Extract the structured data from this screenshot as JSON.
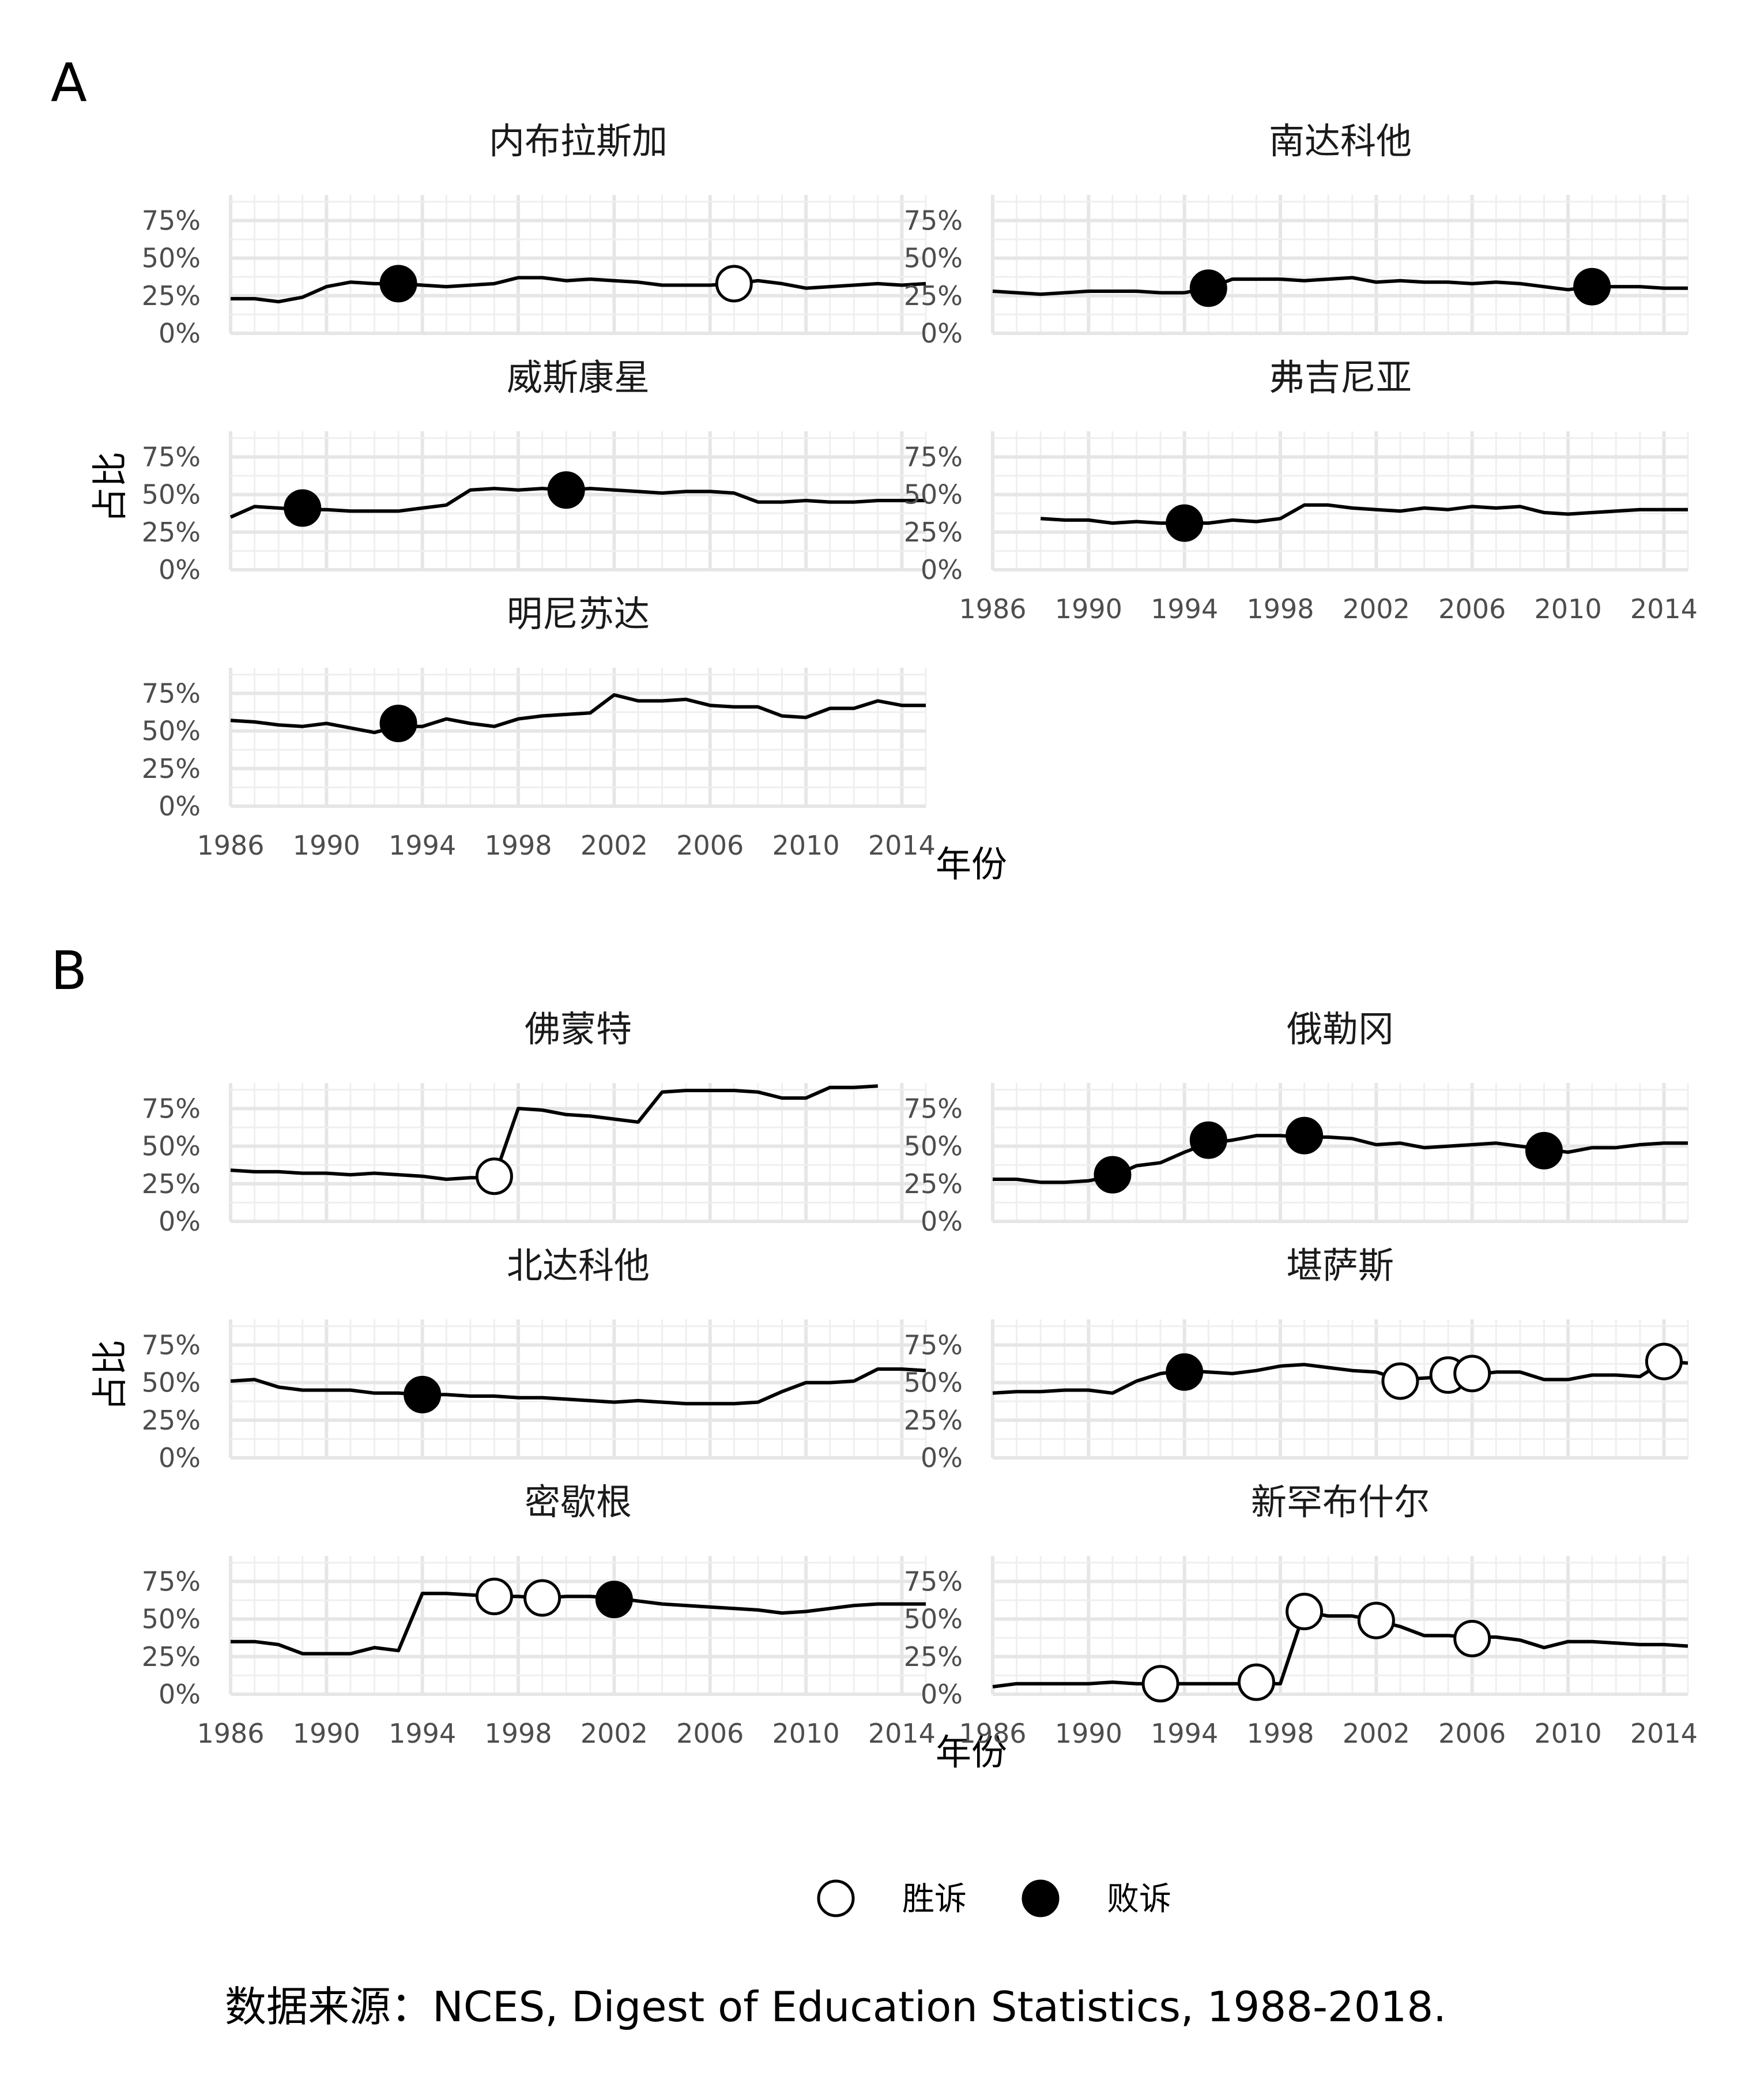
{
  "chart_data": {
    "type": "line",
    "panels": [
      {
        "label": "A",
        "xlabel": "年份",
        "ylabel": "占比",
        "facets": [
          {
            "title": "内布拉斯加",
            "x": [
              1986,
              1987,
              1988,
              1989,
              1990,
              1991,
              1992,
              1993,
              1994,
              1995,
              1996,
              1997,
              1998,
              1999,
              2000,
              2001,
              2002,
              2003,
              2004,
              2005,
              2006,
              2007,
              2008,
              2009,
              2010,
              2011,
              2012,
              2013,
              2014,
              2015
            ],
            "y": [
              0.23,
              0.23,
              0.21,
              0.24,
              0.31,
              0.34,
              0.33,
              0.33,
              0.32,
              0.31,
              0.32,
              0.33,
              0.37,
              0.37,
              0.35,
              0.36,
              0.35,
              0.34,
              0.32,
              0.32,
              0.32,
              0.33,
              0.35,
              0.33,
              0.3,
              0.31,
              0.32,
              0.33,
              0.32,
              0.33
            ],
            "events": [
              {
                "x": 1993,
                "y": 0.33,
                "outcome": "lost"
              },
              {
                "x": 2007,
                "y": 0.33,
                "outcome": "won"
              }
            ]
          },
          {
            "title": "南达科他",
            "x": [
              1986,
              1987,
              1988,
              1989,
              1990,
              1991,
              1992,
              1993,
              1994,
              1995,
              1996,
              1997,
              1998,
              1999,
              2000,
              2001,
              2002,
              2003,
              2004,
              2005,
              2006,
              2007,
              2008,
              2009,
              2010,
              2011,
              2012,
              2013,
              2014,
              2015
            ],
            "y": [
              0.28,
              0.27,
              0.26,
              0.27,
              0.28,
              0.28,
              0.28,
              0.27,
              0.27,
              0.3,
              0.36,
              0.36,
              0.36,
              0.35,
              0.36,
              0.37,
              0.34,
              0.35,
              0.34,
              0.34,
              0.33,
              0.34,
              0.33,
              0.31,
              0.29,
              0.31,
              0.31,
              0.31,
              0.3,
              0.3
            ],
            "events": [
              {
                "x": 1995,
                "y": 0.3,
                "outcome": "lost"
              },
              {
                "x": 2011,
                "y": 0.31,
                "outcome": "lost"
              }
            ]
          },
          {
            "title": "威斯康星",
            "x": [
              1986,
              1987,
              1988,
              1989,
              1990,
              1991,
              1992,
              1993,
              1994,
              1995,
              1996,
              1997,
              1998,
              1999,
              2000,
              2001,
              2002,
              2003,
              2004,
              2005,
              2006,
              2007,
              2008,
              2009,
              2010,
              2011,
              2012,
              2013,
              2014,
              2015
            ],
            "y": [
              0.35,
              0.42,
              0.41,
              0.4,
              0.4,
              0.39,
              0.39,
              0.39,
              0.41,
              0.43,
              0.53,
              0.54,
              0.53,
              0.54,
              0.53,
              0.54,
              0.53,
              0.52,
              0.51,
              0.52,
              0.52,
              0.51,
              0.45,
              0.45,
              0.46,
              0.45,
              0.45,
              0.46,
              0.46,
              0.46
            ],
            "events": [
              {
                "x": 1989,
                "y": 0.41,
                "outcome": "lost"
              },
              {
                "x": 2000,
                "y": 0.53,
                "outcome": "lost"
              }
            ]
          },
          {
            "title": "弗吉尼亚",
            "x": [
              1988,
              1989,
              1990,
              1991,
              1992,
              1993,
              1994,
              1995,
              1996,
              1997,
              1998,
              1999,
              2000,
              2001,
              2002,
              2003,
              2004,
              2005,
              2006,
              2007,
              2008,
              2009,
              2010,
              2011,
              2012,
              2013,
              2014,
              2015
            ],
            "y": [
              0.34,
              0.33,
              0.33,
              0.31,
              0.32,
              0.31,
              0.31,
              0.31,
              0.33,
              0.32,
              0.34,
              0.43,
              0.43,
              0.41,
              0.4,
              0.39,
              0.41,
              0.4,
              0.42,
              0.41,
              0.42,
              0.38,
              0.37,
              0.38,
              0.39,
              0.4,
              0.4,
              0.4
            ],
            "events": [
              {
                "x": 1994,
                "y": 0.31,
                "outcome": "lost"
              }
            ]
          },
          {
            "title": "明尼苏达",
            "x": [
              1986,
              1987,
              1988,
              1989,
              1990,
              1991,
              1992,
              1993,
              1994,
              1995,
              1996,
              1997,
              1998,
              1999,
              2000,
              2001,
              2002,
              2003,
              2004,
              2005,
              2006,
              2007,
              2008,
              2009,
              2010,
              2011,
              2012,
              2013,
              2014,
              2015
            ],
            "y": [
              0.57,
              0.56,
              0.54,
              0.53,
              0.55,
              0.52,
              0.49,
              0.53,
              0.53,
              0.58,
              0.55,
              0.53,
              0.58,
              0.6,
              0.61,
              0.62,
              0.74,
              0.7,
              0.7,
              0.71,
              0.67,
              0.66,
              0.66,
              0.6,
              0.59,
              0.65,
              0.65,
              0.7,
              0.67,
              0.67
            ],
            "events": [
              {
                "x": 1993,
                "y": 0.55,
                "outcome": "lost"
              }
            ]
          }
        ]
      },
      {
        "label": "B",
        "xlabel": "年份",
        "ylabel": "占比",
        "facets": [
          {
            "title": "佛蒙特",
            "x": [
              1986,
              1987,
              1988,
              1989,
              1990,
              1991,
              1992,
              1993,
              1994,
              1995,
              1996,
              1997,
              1998,
              1999,
              2000,
              2001,
              2002,
              2003,
              2004,
              2005,
              2006,
              2007,
              2008,
              2009,
              2010,
              2011,
              2012,
              2013
            ],
            "y": [
              0.34,
              0.33,
              0.33,
              0.32,
              0.32,
              0.31,
              0.32,
              0.31,
              0.3,
              0.28,
              0.29,
              0.29,
              0.75,
              0.74,
              0.71,
              0.7,
              0.68,
              0.66,
              0.86,
              0.87,
              0.87,
              0.87,
              0.86,
              0.82,
              0.82,
              0.89,
              0.89,
              0.9
            ],
            "events": [
              {
                "x": 1997,
                "y": 0.3,
                "outcome": "won"
              }
            ]
          },
          {
            "title": "俄勒冈",
            "x": [
              1986,
              1987,
              1988,
              1989,
              1990,
              1991,
              1992,
              1993,
              1994,
              1995,
              1996,
              1997,
              1998,
              1999,
              2000,
              2001,
              2002,
              2003,
              2004,
              2005,
              2006,
              2007,
              2008,
              2009,
              2010,
              2011,
              2012,
              2013,
              2014,
              2015
            ],
            "y": [
              0.28,
              0.28,
              0.26,
              0.26,
              0.27,
              0.3,
              0.37,
              0.39,
              0.46,
              0.52,
              0.54,
              0.57,
              0.57,
              0.56,
              0.56,
              0.55,
              0.51,
              0.52,
              0.49,
              0.5,
              0.51,
              0.52,
              0.5,
              0.48,
              0.46,
              0.49,
              0.49,
              0.51,
              0.52,
              0.52
            ],
            "events": [
              {
                "x": 1991,
                "y": 0.31,
                "outcome": "lost"
              },
              {
                "x": 1995,
                "y": 0.54,
                "outcome": "lost"
              },
              {
                "x": 1999,
                "y": 0.57,
                "outcome": "lost"
              },
              {
                "x": 2009,
                "y": 0.47,
                "outcome": "lost"
              }
            ]
          },
          {
            "title": "北达科他",
            "x": [
              1986,
              1987,
              1988,
              1989,
              1990,
              1991,
              1992,
              1993,
              1994,
              1995,
              1996,
              1997,
              1998,
              1999,
              2000,
              2001,
              2002,
              2003,
              2004,
              2005,
              2006,
              2007,
              2008,
              2009,
              2010,
              2011,
              2012,
              2013,
              2014,
              2015
            ],
            "y": [
              0.51,
              0.52,
              0.47,
              0.45,
              0.45,
              0.45,
              0.43,
              0.43,
              0.42,
              0.42,
              0.41,
              0.41,
              0.4,
              0.4,
              0.39,
              0.38,
              0.37,
              0.38,
              0.37,
              0.36,
              0.36,
              0.36,
              0.37,
              0.44,
              0.5,
              0.5,
              0.51,
              0.59,
              0.59,
              0.58
            ],
            "events": [
              {
                "x": 1994,
                "y": 0.42,
                "outcome": "lost"
              }
            ]
          },
          {
            "title": "堪萨斯",
            "x": [
              1986,
              1987,
              1988,
              1989,
              1990,
              1991,
              1992,
              1993,
              1994,
              1995,
              1996,
              1997,
              1998,
              1999,
              2000,
              2001,
              2002,
              2003,
              2004,
              2005,
              2006,
              2007,
              2008,
              2009,
              2010,
              2011,
              2012,
              2013,
              2014,
              2015
            ],
            "y": [
              0.43,
              0.44,
              0.44,
              0.45,
              0.45,
              0.43,
              0.51,
              0.56,
              0.58,
              0.57,
              0.56,
              0.58,
              0.61,
              0.62,
              0.6,
              0.58,
              0.57,
              0.52,
              0.53,
              0.54,
              0.55,
              0.57,
              0.57,
              0.52,
              0.52,
              0.55,
              0.55,
              0.54,
              0.64,
              0.63
            ],
            "events": [
              {
                "x": 1994,
                "y": 0.57,
                "outcome": "lost"
              },
              {
                "x": 2003,
                "y": 0.51,
                "outcome": "won"
              },
              {
                "x": 2005,
                "y": 0.55,
                "outcome": "won"
              },
              {
                "x": 2006,
                "y": 0.56,
                "outcome": "won"
              },
              {
                "x": 2014,
                "y": 0.64,
                "outcome": "won"
              }
            ]
          },
          {
            "title": "密歇根",
            "x": [
              1986,
              1987,
              1988,
              1989,
              1990,
              1991,
              1992,
              1993,
              1994,
              1995,
              1996,
              1997,
              1998,
              1999,
              2000,
              2001,
              2002,
              2003,
              2004,
              2005,
              2006,
              2007,
              2008,
              2009,
              2010,
              2011,
              2012,
              2013,
              2014,
              2015
            ],
            "y": [
              0.35,
              0.35,
              0.33,
              0.27,
              0.27,
              0.27,
              0.31,
              0.29,
              0.67,
              0.67,
              0.66,
              0.65,
              0.65,
              0.64,
              0.65,
              0.65,
              0.64,
              0.62,
              0.6,
              0.59,
              0.58,
              0.57,
              0.56,
              0.54,
              0.55,
              0.57,
              0.59,
              0.6,
              0.6,
              0.6
            ],
            "events": [
              {
                "x": 1997,
                "y": 0.65,
                "outcome": "won"
              },
              {
                "x": 1999,
                "y": 0.64,
                "outcome": "won"
              },
              {
                "x": 2002,
                "y": 0.63,
                "outcome": "lost"
              }
            ]
          },
          {
            "title": "新罕布什尔",
            "x": [
              1986,
              1987,
              1988,
              1989,
              1990,
              1991,
              1992,
              1993,
              1994,
              1995,
              1996,
              1997,
              1998,
              1999,
              2000,
              2001,
              2002,
              2003,
              2004,
              2005,
              2006,
              2007,
              2008,
              2009,
              2010,
              2011,
              2012,
              2013,
              2014,
              2015
            ],
            "y": [
              0.05,
              0.07,
              0.07,
              0.07,
              0.07,
              0.08,
              0.07,
              0.07,
              0.07,
              0.07,
              0.07,
              0.07,
              0.07,
              0.55,
              0.52,
              0.52,
              0.49,
              0.45,
              0.39,
              0.39,
              0.38,
              0.38,
              0.36,
              0.31,
              0.35,
              0.35,
              0.34,
              0.33,
              0.33,
              0.32
            ],
            "events": [
              {
                "x": 1993,
                "y": 0.07,
                "outcome": "won"
              },
              {
                "x": 1997,
                "y": 0.08,
                "outcome": "won"
              },
              {
                "x": 1999,
                "y": 0.55,
                "outcome": "won"
              },
              {
                "x": 2002,
                "y": 0.49,
                "outcome": "won"
              },
              {
                "x": 2006,
                "y": 0.37,
                "outcome": "won"
              }
            ]
          }
        ]
      }
    ],
    "xlim": [
      1986,
      2015
    ],
    "ylim": [
      0,
      1
    ],
    "x_ticks": [
      "1986",
      "1990",
      "1994",
      "1998",
      "2002",
      "2006",
      "2010",
      "2014"
    ],
    "y_ticks": [
      "0%",
      "25%",
      "50%",
      "75%"
    ],
    "grid": true,
    "legend": {
      "placement": "bottom",
      "entries": [
        {
          "label": "胜诉",
          "marker": "open-circle"
        },
        {
          "label": "败诉",
          "marker": "filled-circle"
        }
      ]
    },
    "series_color": "#000000",
    "event_colors": {
      "won": "#ffffff",
      "lost": "#000000"
    }
  },
  "caption": "数据来源：NCES, Digest of Education Statistics, 1988-2018."
}
